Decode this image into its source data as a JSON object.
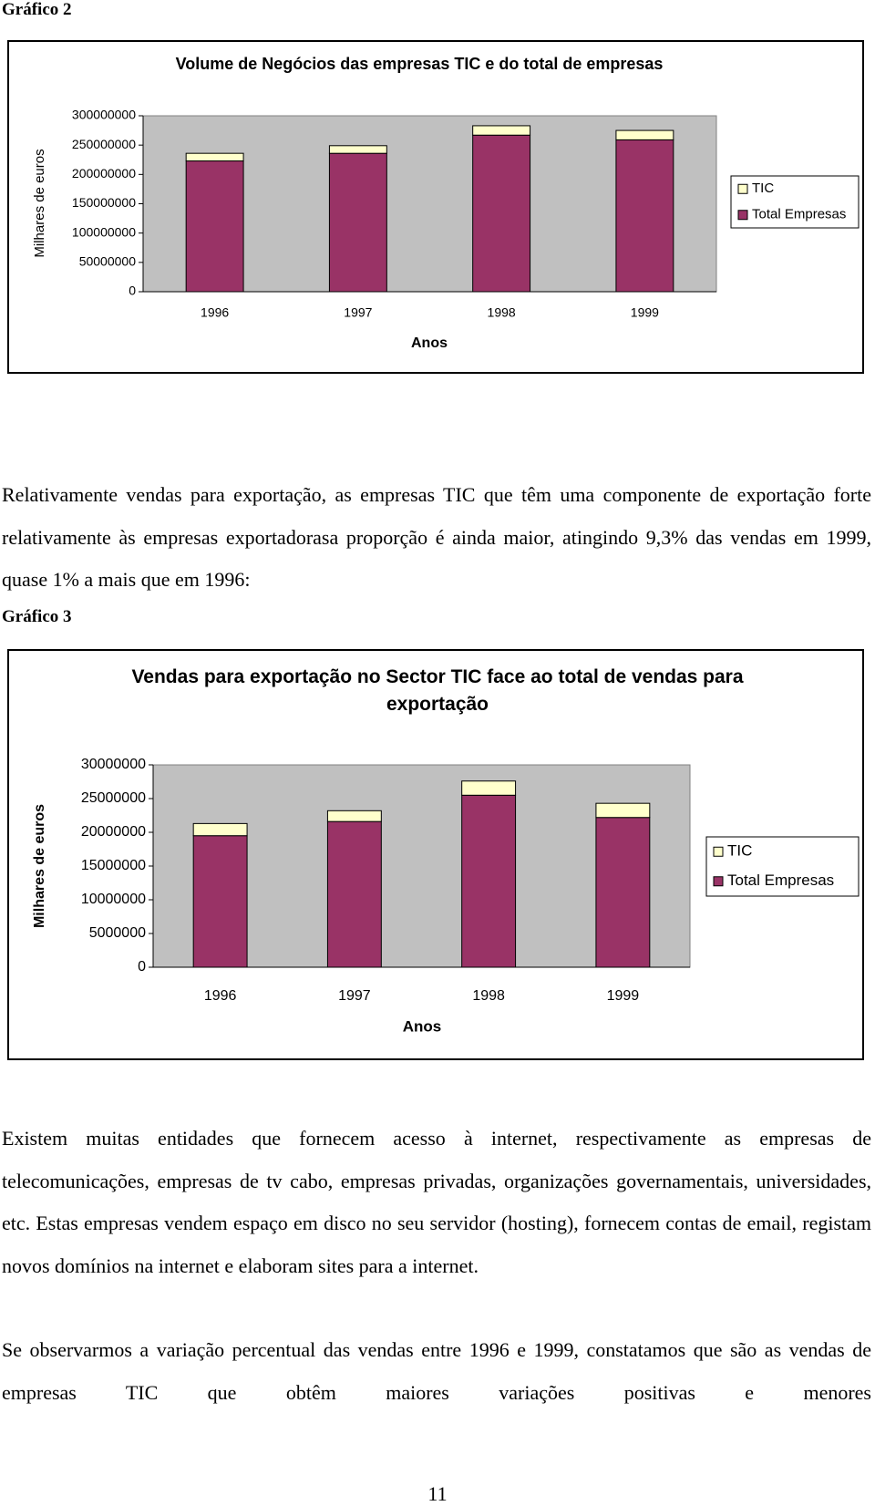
{
  "label_2": "Gráfico 2",
  "chart_data": [
    {
      "type": "bar",
      "stacked": true,
      "title": "Volume de Negócios das empresas TIC e do total de empresas",
      "y_label": "Milhares de euros",
      "x_label": "Anos",
      "categories": [
        "1996",
        "1997",
        "1998",
        "1999"
      ],
      "series": [
        {
          "name": "TIC",
          "color": "#ffffcc",
          "values": [
            13000000,
            13000000,
            16000000,
            16000000
          ]
        },
        {
          "name": "Total Empresas",
          "color": "#993366",
          "values": [
            223000000,
            236000000,
            267000000,
            259000000
          ]
        }
      ],
      "ylim": [
        0,
        300000000
      ],
      "yticks": [
        0,
        50000000,
        100000000,
        150000000,
        200000000,
        250000000,
        300000000
      ],
      "grid": false,
      "plot_background": "#c0c0c0",
      "legend": "right"
    },
    {
      "type": "bar",
      "stacked": true,
      "title": "Vendas para exportação no Sector TIC face ao total de vendas para exportação",
      "y_label": "Milhares de euros",
      "x_label": "Anos",
      "categories": [
        "1996",
        "1997",
        "1998",
        "1999"
      ],
      "series": [
        {
          "name": "TIC",
          "color": "#ffffcc",
          "values": [
            1800000,
            1600000,
            2100000,
            2100000
          ]
        },
        {
          "name": "Total Empresas",
          "color": "#993366",
          "values": [
            19500000,
            21600000,
            25500000,
            22200000
          ]
        }
      ],
      "ylim": [
        0,
        30000000
      ],
      "yticks": [
        0,
        5000000,
        10000000,
        15000000,
        20000000,
        25000000,
        30000000
      ],
      "grid": false,
      "plot_background": "#c0c0c0",
      "legend": "right"
    }
  ],
  "paragraphs": [
    "Relativamente vendas para exportação, as empresas TIC que têm uma componente de exportação forte relativamente às empresas exportadorasa proporção é ainda maior, atingindo 9,3% das vendas em 1999, quase 1% a mais que em 1996:",
    "Existem muitas entidades que fornecem acesso à internet, respectivamente as empresas de telecomunicações, empresas de tv cabo, empresas privadas, organizações governamentais, universidades, etc. Estas empresas vendem espaço em disco no seu servidor (hosting), fornecem contas de email, registam novos domínios na internet e elaboram sites para a internet.",
    "Se observarmos a variação percentual das vendas entre 1996 e 1999, constatamos que são as vendas de empresas TIC que obtêm maiores variações positivas e menores"
  ],
  "label_3": "Gráfico 3",
  "page_number": "11"
}
